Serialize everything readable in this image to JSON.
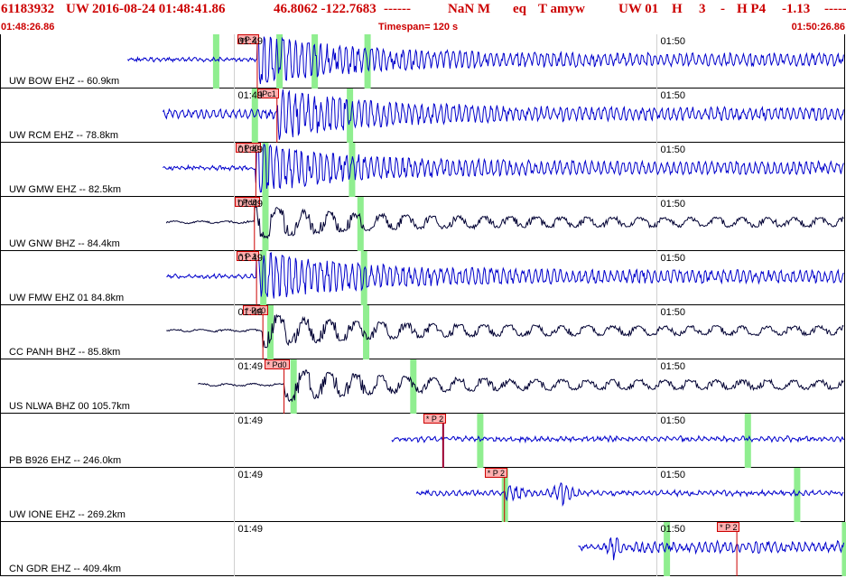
{
  "header": {
    "event_id": "61183932",
    "network": "UW",
    "datetime": "2016-08-24 01:48:41.86",
    "coords": "46.8062 -122.7683",
    "dashes": "------",
    "magnitude": "NaN M",
    "event_type": "eq",
    "type_code": "T amyw",
    "station_info": "UW 01",
    "h": "H",
    "h_num": "3",
    "dash": "-",
    "hp": "H P4",
    "value": "-1.13",
    "trail": "------"
  },
  "subheader": {
    "start_time": "01:48:26.86",
    "timespan": "Timespan= 120 s",
    "end_time": "01:50:26.86"
  },
  "time_labels": [
    "01:49",
    "01:50"
  ],
  "colors": {
    "header_red": "#cc0000",
    "trace_blue": "#0000cc",
    "trace_black": "#000033",
    "pick_line": "#cc0000",
    "green_marker": "#90ee90",
    "tick_gray": "#d0d0d0"
  },
  "traces": [
    {
      "label": "UW BOW EHZ -- 60.9km",
      "pick": "eP 2",
      "pick_t": 36.4,
      "start_t": 18.0,
      "end_t": 120,
      "color": "blue",
      "amp": "medium",
      "greens": [
        30.5,
        39.5,
        44.5,
        52.0
      ]
    },
    {
      "label": "UW RCM EHZ -- 78.8km",
      "pick": "IPc1",
      "pick_t": 39.2,
      "start_t": 23.0,
      "end_t": 120,
      "color": "blue",
      "amp": "high",
      "greens": [
        36.0,
        49.5
      ]
    },
    {
      "label": "UW GMW EHZ -- 82.5km",
      "pick": "* Pd0",
      "pick_t": 36.2,
      "start_t": 23.0,
      "end_t": 120,
      "color": "blue",
      "amp": "medium",
      "greens": [
        37.5,
        49.8
      ]
    },
    {
      "label": "UW GNW BHZ -- 84.4km",
      "pick": "* Pd0",
      "pick_t": 36.0,
      "start_t": 23.5,
      "end_t": 120,
      "color": "black",
      "amp": "low",
      "greens": [
        37.5,
        51.0
      ]
    },
    {
      "label": "UW FMW EHZ 01 84.8km",
      "pick": "* P 1",
      "pick_t": 36.3,
      "start_t": 23.5,
      "end_t": 120,
      "color": "blue",
      "amp": "medium",
      "greens": [
        37.2,
        51.5
      ]
    },
    {
      "label": "CC PANH BHZ -- 85.8km",
      "pick": "* Pd0",
      "pick_t": 37.2,
      "start_t": 23.5,
      "end_t": 120,
      "color": "black",
      "amp": "low",
      "greens": [
        38.2,
        51.8
      ]
    },
    {
      "label": "US NLWA BHZ 00 105.7km",
      "pick": "* Pd0",
      "pick_t": 40.2,
      "start_t": 28.0,
      "end_t": 120,
      "color": "black",
      "amp": "low",
      "greens": [
        41.5,
        58.5
      ]
    },
    {
      "label": "PB B926 EHZ -- 246.0km",
      "pick": "* P 2",
      "pick_t": 62.8,
      "start_t": 55.5,
      "end_t": 120,
      "color": "blue",
      "amp": "spike",
      "greens": [
        68.0,
        106.0
      ]
    },
    {
      "label": "UW IONE EHZ -- 269.2km",
      "pick": "* P 2",
      "pick_t": 71.5,
      "start_t": 59.0,
      "end_t": 120,
      "color": "blue",
      "amp": "burst",
      "greens": [
        71.5,
        113.0
      ]
    },
    {
      "label": "CN GDR EHZ -- 409.4km",
      "pick": "* P 2",
      "pick_t": 104.5,
      "start_t": 82.0,
      "end_t": 120,
      "color": "blue",
      "amp": "burst2",
      "greens": [
        94.5,
        119.8
      ]
    }
  ]
}
